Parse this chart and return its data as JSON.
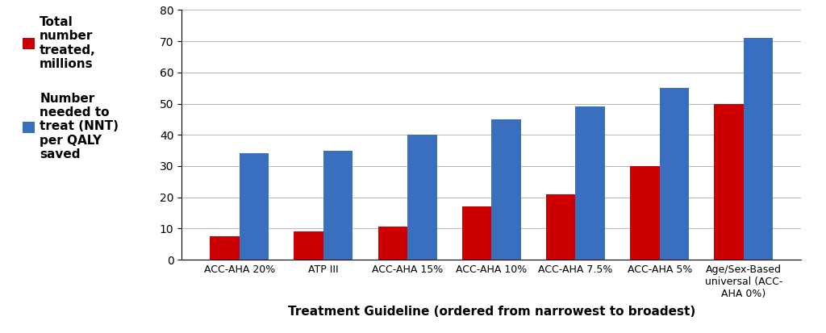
{
  "categories": [
    "ACC-AHA 20%",
    "ATP III",
    "ACC-AHA 15%",
    "ACC-AHA 10%",
    "ACC-AHA 7.5%",
    "ACC-AHA 5%",
    "Age/Sex-Based\nuniversal (ACC-\nAHA 0%)"
  ],
  "red_values": [
    7.5,
    9,
    10.5,
    17,
    21,
    30,
    50
  ],
  "blue_values": [
    34,
    35,
    40,
    45,
    49,
    55,
    71
  ],
  "red_color": "#CC0000",
  "blue_color": "#3A6EBF",
  "xlabel": "Treatment Guideline (ordered from narrowest to broadest)",
  "ylim": [
    0,
    80
  ],
  "yticks": [
    0,
    10,
    20,
    30,
    40,
    50,
    60,
    70,
    80
  ],
  "legend_red_label": "Total\nnumber\ntreated,\nmillions",
  "legend_blue_label": "Number\nneeded to\ntreat (NNT)\nper QALY\nsaved",
  "background_color": "#ffffff",
  "grid_color": "#bbbbbb",
  "bar_width": 0.35,
  "legend_fontsize": 11,
  "xlabel_fontsize": 11,
  "ytick_fontsize": 10,
  "xtick_fontsize": 9
}
